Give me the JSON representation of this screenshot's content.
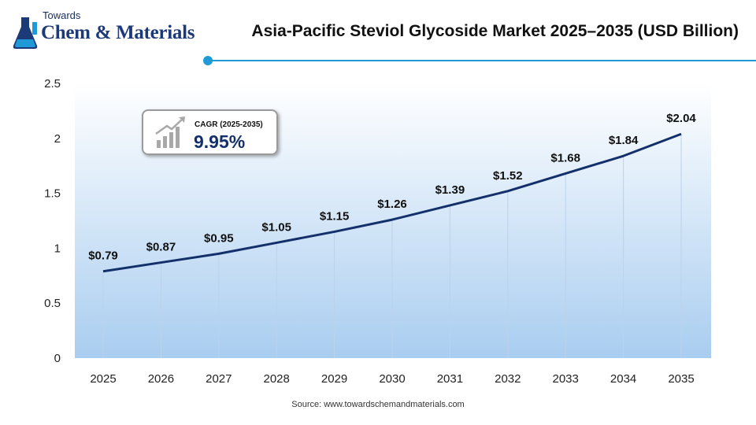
{
  "brand": {
    "towards": "Towards",
    "name": "Chem & Materials"
  },
  "header": {
    "title": "Asia-Pacific Steviol Glycoside Market 2025–2035 (USD Billion)"
  },
  "cagr": {
    "label": "CAGR (2025-2035)",
    "value": "9.95%"
  },
  "source": "Source: www.towardschemandmaterials.com",
  "colors": {
    "line": "#14306b",
    "accent": "#1f9ad6",
    "area_top": "#ffffff",
    "area_bottom": "#a9cdf0"
  },
  "chart_data": {
    "type": "line",
    "title": "Asia-Pacific Steviol Glycoside Market 2025–2035 (USD Billion)",
    "categories": [
      "2025",
      "2026",
      "2027",
      "2028",
      "2029",
      "2030",
      "2031",
      "2032",
      "2033",
      "2034",
      "2035"
    ],
    "series": [
      {
        "values": [
          0.79,
          0.87,
          0.95,
          1.05,
          1.15,
          1.26,
          1.39,
          1.52,
          1.68,
          1.84,
          2.04
        ],
        "labels": [
          "$0.79",
          "$0.87",
          "$0.95",
          "$1.05",
          "$1.15",
          "$1.26",
          "$1.39",
          "$1.52",
          "$1.68",
          "$1.84",
          "$2.04"
        ]
      }
    ],
    "yticks": [
      "0",
      "0.5",
      "1",
      "1.5",
      "2",
      "2.5"
    ],
    "ylim": [
      0,
      2.5
    ],
    "grid": "vertical",
    "legend": "none"
  }
}
